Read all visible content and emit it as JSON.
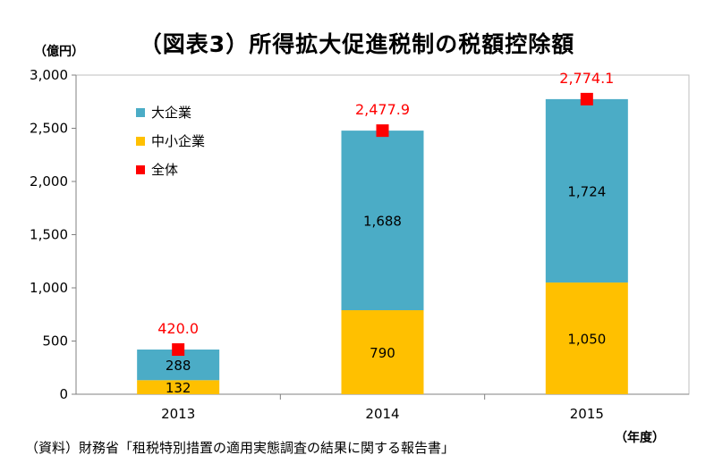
{
  "chart_data": {
    "type": "bar",
    "stacked": true,
    "title": "（図表3）所得拡大促進税制の税額控除額",
    "y_unit": "（億円）",
    "x_unit": "（年度）",
    "source": "（資料）財務省「租税特別措置の適用実態調査の結果に関する報告書」",
    "categories": [
      "2013",
      "2014",
      "2015"
    ],
    "series": [
      {
        "name": "中小企業",
        "values": [
          132,
          790,
          1050
        ],
        "labels": [
          "132",
          "790",
          "1,050"
        ],
        "color": "#FFC000"
      },
      {
        "name": "大企業",
        "values": [
          288,
          1688,
          1724
        ],
        "labels": [
          "288",
          "1,688",
          "1,724"
        ],
        "color": "#4BACC6"
      }
    ],
    "total": {
      "name": "全体",
      "values": [
        420.0,
        2477.9,
        2774.1
      ],
      "labels": [
        "420.0",
        "2,477.9",
        "2,774.1"
      ],
      "color": "#FF0000",
      "marker": "square"
    },
    "legend_order": [
      "大企業",
      "中小企業",
      "全体"
    ],
    "legend_position": "top-left inside",
    "ylim": [
      0,
      3000
    ],
    "yticks": [
      0,
      500,
      1000,
      1500,
      2000,
      2500,
      3000
    ],
    "ytick_labels": [
      "0",
      "500",
      "1,000",
      "1,500",
      "2,000",
      "2,500",
      "3,000"
    ],
    "grid": false
  }
}
